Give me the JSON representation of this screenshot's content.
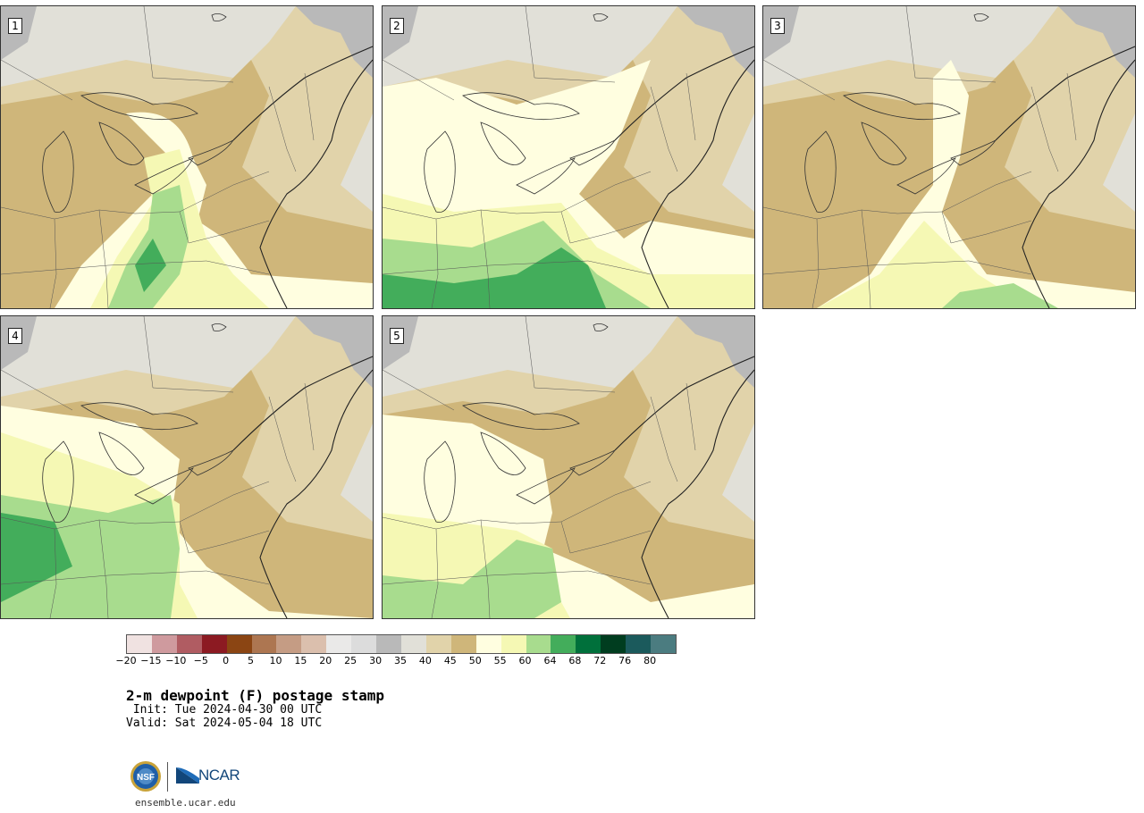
{
  "panels": [
    {
      "label": "1"
    },
    {
      "label": "2"
    },
    {
      "label": "3"
    },
    {
      "label": "4"
    },
    {
      "label": "5"
    }
  ],
  "colorbar": {
    "colors": [
      "#f0e2e1",
      "#cf9a9e",
      "#b05c62",
      "#8c1a22",
      "#8b4513",
      "#ad7651",
      "#c59c84",
      "#dbbfad",
      "#eae9e8",
      "#dcdcdc",
      "#b9b9b9",
      "#e1e0d8",
      "#e1d3aa",
      "#cfb67a",
      "#fffee0",
      "#f5f8b4",
      "#a8dc8e",
      "#43ad5b",
      "#00703b",
      "#003d1f",
      "#1b5a5c",
      "#4b7c80"
    ],
    "tick_labels": [
      "−20",
      "−15",
      "−10",
      "−5",
      "0",
      "5",
      "10",
      "15",
      "20",
      "25",
      "30",
      "35",
      "40",
      "45",
      "50",
      "55",
      "60",
      "64",
      "68",
      "72",
      "76",
      "80"
    ]
  },
  "title": "2-m dewpoint (F) postage stamp",
  "init": " Init: Tue 2024-04-30 00 UTC",
  "valid": "Valid: Sat 2024-05-04 18 UTC",
  "logos": {
    "nsf": "NSF",
    "ncar": "NCAR"
  },
  "site": "ensemble.ucar.edu"
}
